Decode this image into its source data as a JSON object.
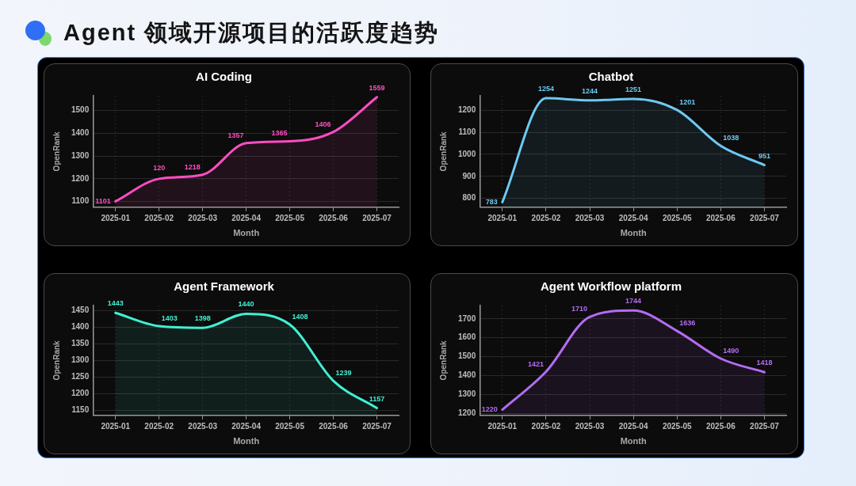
{
  "chart_data": [
    {
      "type": "other",
      "title": "Agent 领域开源项目的活跃度趋势"
    },
    {
      "type": "area",
      "title": "AI Coding",
      "xlabel": "Month",
      "ylabel": "OpenRank",
      "categories": [
        "2025-01",
        "2025-02",
        "2025-03",
        "2025-04",
        "2025-05",
        "2025-06",
        "2025-07"
      ],
      "series": [
        {
          "color": "#ff4dc4",
          "values": [
            1101,
            1200,
            1218,
            1357,
            1365,
            1406,
            1559
          ],
          "value_labels": [
            "1101",
            null,
            "1218",
            "1357",
            "1365",
            "1406",
            "1559"
          ]
        }
      ],
      "annotations": [
        {
          "text": "120",
          "x": "2025-02",
          "y": 1200
        }
      ],
      "ylim": [
        1075,
        1565
      ],
      "yticks": [
        1100,
        1200,
        1300,
        1400,
        1500
      ],
      "grid": true,
      "marker": "none"
    },
    {
      "type": "area",
      "title": "Chatbot",
      "xlabel": "Month",
      "ylabel": "OpenRank",
      "categories": [
        "2025-01",
        "2025-02",
        "2025-03",
        "2025-04",
        "2025-05",
        "2025-06",
        "2025-07"
      ],
      "series": [
        {
          "color": "#6ec8f2",
          "values": [
            783,
            1254,
            1244,
            1251,
            1201,
            1038,
            951
          ]
        }
      ],
      "ylim": [
        760,
        1265
      ],
      "yticks": [
        800,
        900,
        1000,
        1100,
        1200
      ],
      "grid": true,
      "marker": "none",
      "data_labels": true
    },
    {
      "type": "area",
      "title": "Agent Framework",
      "xlabel": "Month",
      "ylabel": "OpenRank",
      "categories": [
        "2025-01",
        "2025-02",
        "2025-03",
        "2025-04",
        "2025-05",
        "2025-06",
        "2025-07"
      ],
      "series": [
        {
          "color": "#40f0d2",
          "values": [
            1443,
            1403,
            1398,
            1440,
            1408,
            1239,
            1157
          ]
        }
      ],
      "ylim": [
        1135,
        1465
      ],
      "yticks": [
        1150,
        1200,
        1250,
        1300,
        1350,
        1400,
        1450
      ],
      "grid": true,
      "marker": "none",
      "data_labels": true
    },
    {
      "type": "area",
      "title": "Agent Workflow platform",
      "xlabel": "Month",
      "ylabel": "OpenRank",
      "categories": [
        "2025-01",
        "2025-02",
        "2025-03",
        "2025-04",
        "2025-05",
        "2025-06",
        "2025-07"
      ],
      "series": [
        {
          "color": "#b46cf2",
          "values": [
            1220,
            1421,
            1710,
            1744,
            1636,
            1490,
            1418
          ]
        }
      ],
      "ylim": [
        1190,
        1770
      ],
      "yticks": [
        1200,
        1300,
        1400,
        1500,
        1600,
        1700
      ],
      "grid": true,
      "marker": "none",
      "data_labels": true
    }
  ]
}
